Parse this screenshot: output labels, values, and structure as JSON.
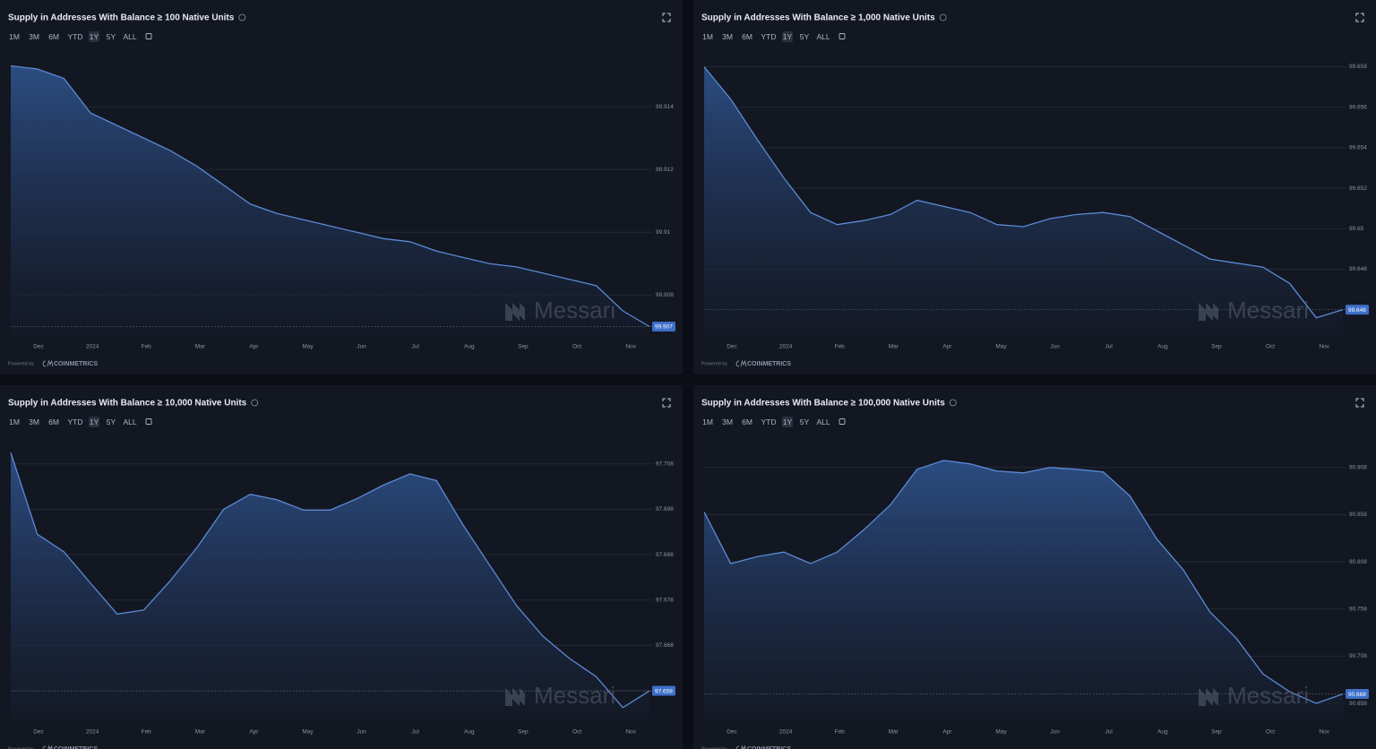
{
  "ui": {
    "range_buttons": [
      "1M",
      "3M",
      "6M",
      "YTD",
      "1Y",
      "5Y",
      "ALL"
    ],
    "active_range": "1Y",
    "powered_by": "Powered by",
    "provider": "COINMETRICS",
    "watermark": "Messari"
  },
  "chart_data": [
    {
      "type": "area",
      "title": "Supply in Addresses With Balance ≥ 100 Native Units",
      "color": "#5b8ad6",
      "x_axis_labels": [
        "Dec",
        "2024",
        "Feb",
        "Mar",
        "Apr",
        "May",
        "Jun",
        "Jul",
        "Aug",
        "Sep",
        "Oct",
        "Nov"
      ],
      "values": [
        99.9153,
        99.9152,
        99.9149,
        99.9138,
        99.9134,
        99.913,
        99.9126,
        99.9121,
        99.9115,
        99.9109,
        99.9106,
        99.9104,
        99.9102,
        99.91,
        99.9098,
        99.9097,
        99.9094,
        99.9092,
        99.909,
        99.9089,
        99.9087,
        99.9085,
        99.9083,
        99.9075,
        99.907
      ],
      "ylim": [
        99.9067,
        99.9154
      ],
      "yticks": [
        99.914,
        99.912,
        99.91,
        99.908
      ],
      "grid": true
    },
    {
      "type": "area",
      "title": "Supply in Addresses With Balance ≥ 1,000 Native Units",
      "color": "#5b8ad6",
      "x_axis_labels": [
        "Dec",
        "2024",
        "Feb",
        "Mar",
        "Apr",
        "May",
        "Jun",
        "Jul",
        "Aug",
        "Sep",
        "Oct",
        "Nov"
      ],
      "values": [
        99.658,
        99.6564,
        99.6544,
        99.6525,
        99.6508,
        99.6502,
        99.6504,
        99.6507,
        99.6514,
        99.6511,
        99.6508,
        99.6502,
        99.6501,
        99.6505,
        99.6507,
        99.6508,
        99.6506,
        99.6499,
        99.6492,
        99.6485,
        99.6483,
        99.6481,
        99.6473,
        99.6456,
        99.646
      ],
      "ylim": [
        99.6447,
        99.6582
      ],
      "yticks": [
        99.658,
        99.656,
        99.654,
        99.652,
        99.65,
        99.648
      ],
      "grid": true
    },
    {
      "type": "area",
      "title": "Supply in Addresses With Balance ≥ 10,000 Native Units",
      "color": "#5b8ad6",
      "x_axis_labels": [
        "Dec",
        "2024",
        "Feb",
        "Mar",
        "Apr",
        "May",
        "Jun",
        "Jul",
        "Aug",
        "Sep",
        "Oct",
        "Nov"
      ],
      "values": [
        97.7105,
        97.6925,
        97.6886,
        97.6817,
        97.6749,
        97.6758,
        97.6823,
        97.6896,
        97.698,
        97.7013,
        97.7001,
        97.6978,
        97.6978,
        97.7003,
        97.7033,
        97.7058,
        97.7043,
        97.6945,
        97.6856,
        97.6768,
        97.67,
        97.6651,
        97.6611,
        97.6543,
        97.658
      ],
      "ylim": [
        97.6513,
        97.7115
      ],
      "yticks": [
        97.708,
        97.698,
        97.688,
        97.678,
        97.668,
        97.658
      ],
      "grid": true
    },
    {
      "type": "area",
      "title": "Supply in Addresses With Balance ≥ 100,000 Native Units",
      "color": "#5b8ad6",
      "x_axis_labels": [
        "Dec",
        "2024",
        "Feb",
        "Mar",
        "Apr",
        "May",
        "Jun",
        "Jul",
        "Aug",
        "Sep",
        "Oct",
        "Nov"
      ],
      "values": [
        90.8608,
        90.8061,
        90.8136,
        90.8183,
        90.8061,
        90.8183,
        90.8419,
        90.8683,
        90.906,
        90.9154,
        90.9117,
        90.9041,
        90.9022,
        90.9079,
        90.906,
        90.9032,
        90.8777,
        90.8325,
        90.7995,
        90.7551,
        90.7268,
        90.6891,
        90.6703,
        90.658,
        90.668
      ],
      "ylim": [
        90.6391,
        90.9286
      ],
      "yticks": [
        90.908,
        90.858,
        90.808,
        90.758,
        90.708,
        90.658
      ],
      "grid": true
    }
  ]
}
